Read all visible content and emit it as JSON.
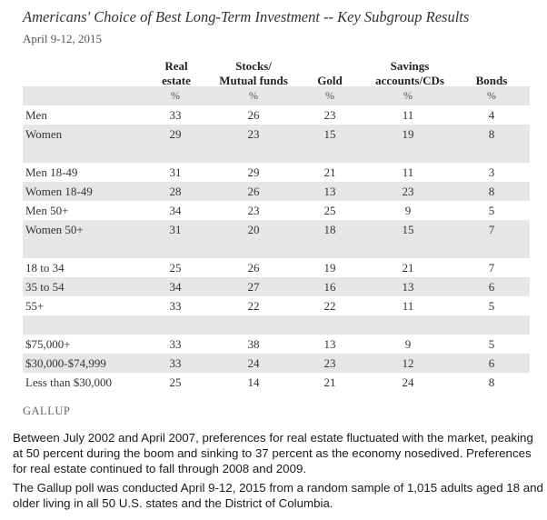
{
  "title": "Americans' Choice of Best Long-Term Investment -- Key Subgroup Results",
  "subtitle": "April 9-12, 2015",
  "source": "GALLUP",
  "paragraphs": [
    "Between July 2002 and April 2007, preferences for real estate fluctuated with the market, peaking at 50 percent during the boom and sinking to 37 percent as the economy nosedived. Preferences for real estate continued to fall through 2008 and 2009.",
    "The Gallup poll was conducted April 9-12, 2015 from a random sample of 1,015 adults aged 18 and older living in all 50 U.S. states and the District of Columbia."
  ],
  "chart_data": {
    "type": "table",
    "columns": [
      {
        "line1": "Real",
        "line2": "estate"
      },
      {
        "line1": "Stocks/",
        "line2": "Mutual funds"
      },
      {
        "line1": "",
        "line2": "Gold"
      },
      {
        "line1": "Savings",
        "line2": "accounts/CDs"
      },
      {
        "line1": "",
        "line2": "Bonds"
      }
    ],
    "unit_symbol": "%",
    "groups": [
      [
        {
          "label": "Men",
          "values": [
            33,
            26,
            23,
            11,
            4
          ]
        },
        {
          "label": "Women",
          "values": [
            29,
            23,
            15,
            19,
            8
          ]
        }
      ],
      [
        {
          "label": "Men 18-49",
          "values": [
            31,
            29,
            21,
            11,
            3
          ]
        },
        {
          "label": "Women 18-49",
          "values": [
            28,
            26,
            13,
            23,
            8
          ]
        },
        {
          "label": "Men 50+",
          "values": [
            34,
            23,
            25,
            9,
            5
          ]
        },
        {
          "label": "Women 50+",
          "values": [
            31,
            20,
            18,
            15,
            7
          ]
        }
      ],
      [
        {
          "label": "18 to 34",
          "values": [
            25,
            26,
            19,
            21,
            7
          ]
        },
        {
          "label": "35 to 54",
          "values": [
            34,
            27,
            16,
            13,
            6
          ]
        },
        {
          "label": "55+",
          "values": [
            33,
            22,
            22,
            11,
            5
          ]
        }
      ],
      [
        {
          "label": "$75,000+",
          "values": [
            33,
            38,
            13,
            9,
            5
          ]
        },
        {
          "label": "$30,000-$74,999",
          "values": [
            33,
            24,
            23,
            12,
            6
          ]
        },
        {
          "label": "Less than $30,000",
          "values": [
            25,
            14,
            21,
            24,
            8
          ]
        }
      ]
    ]
  }
}
